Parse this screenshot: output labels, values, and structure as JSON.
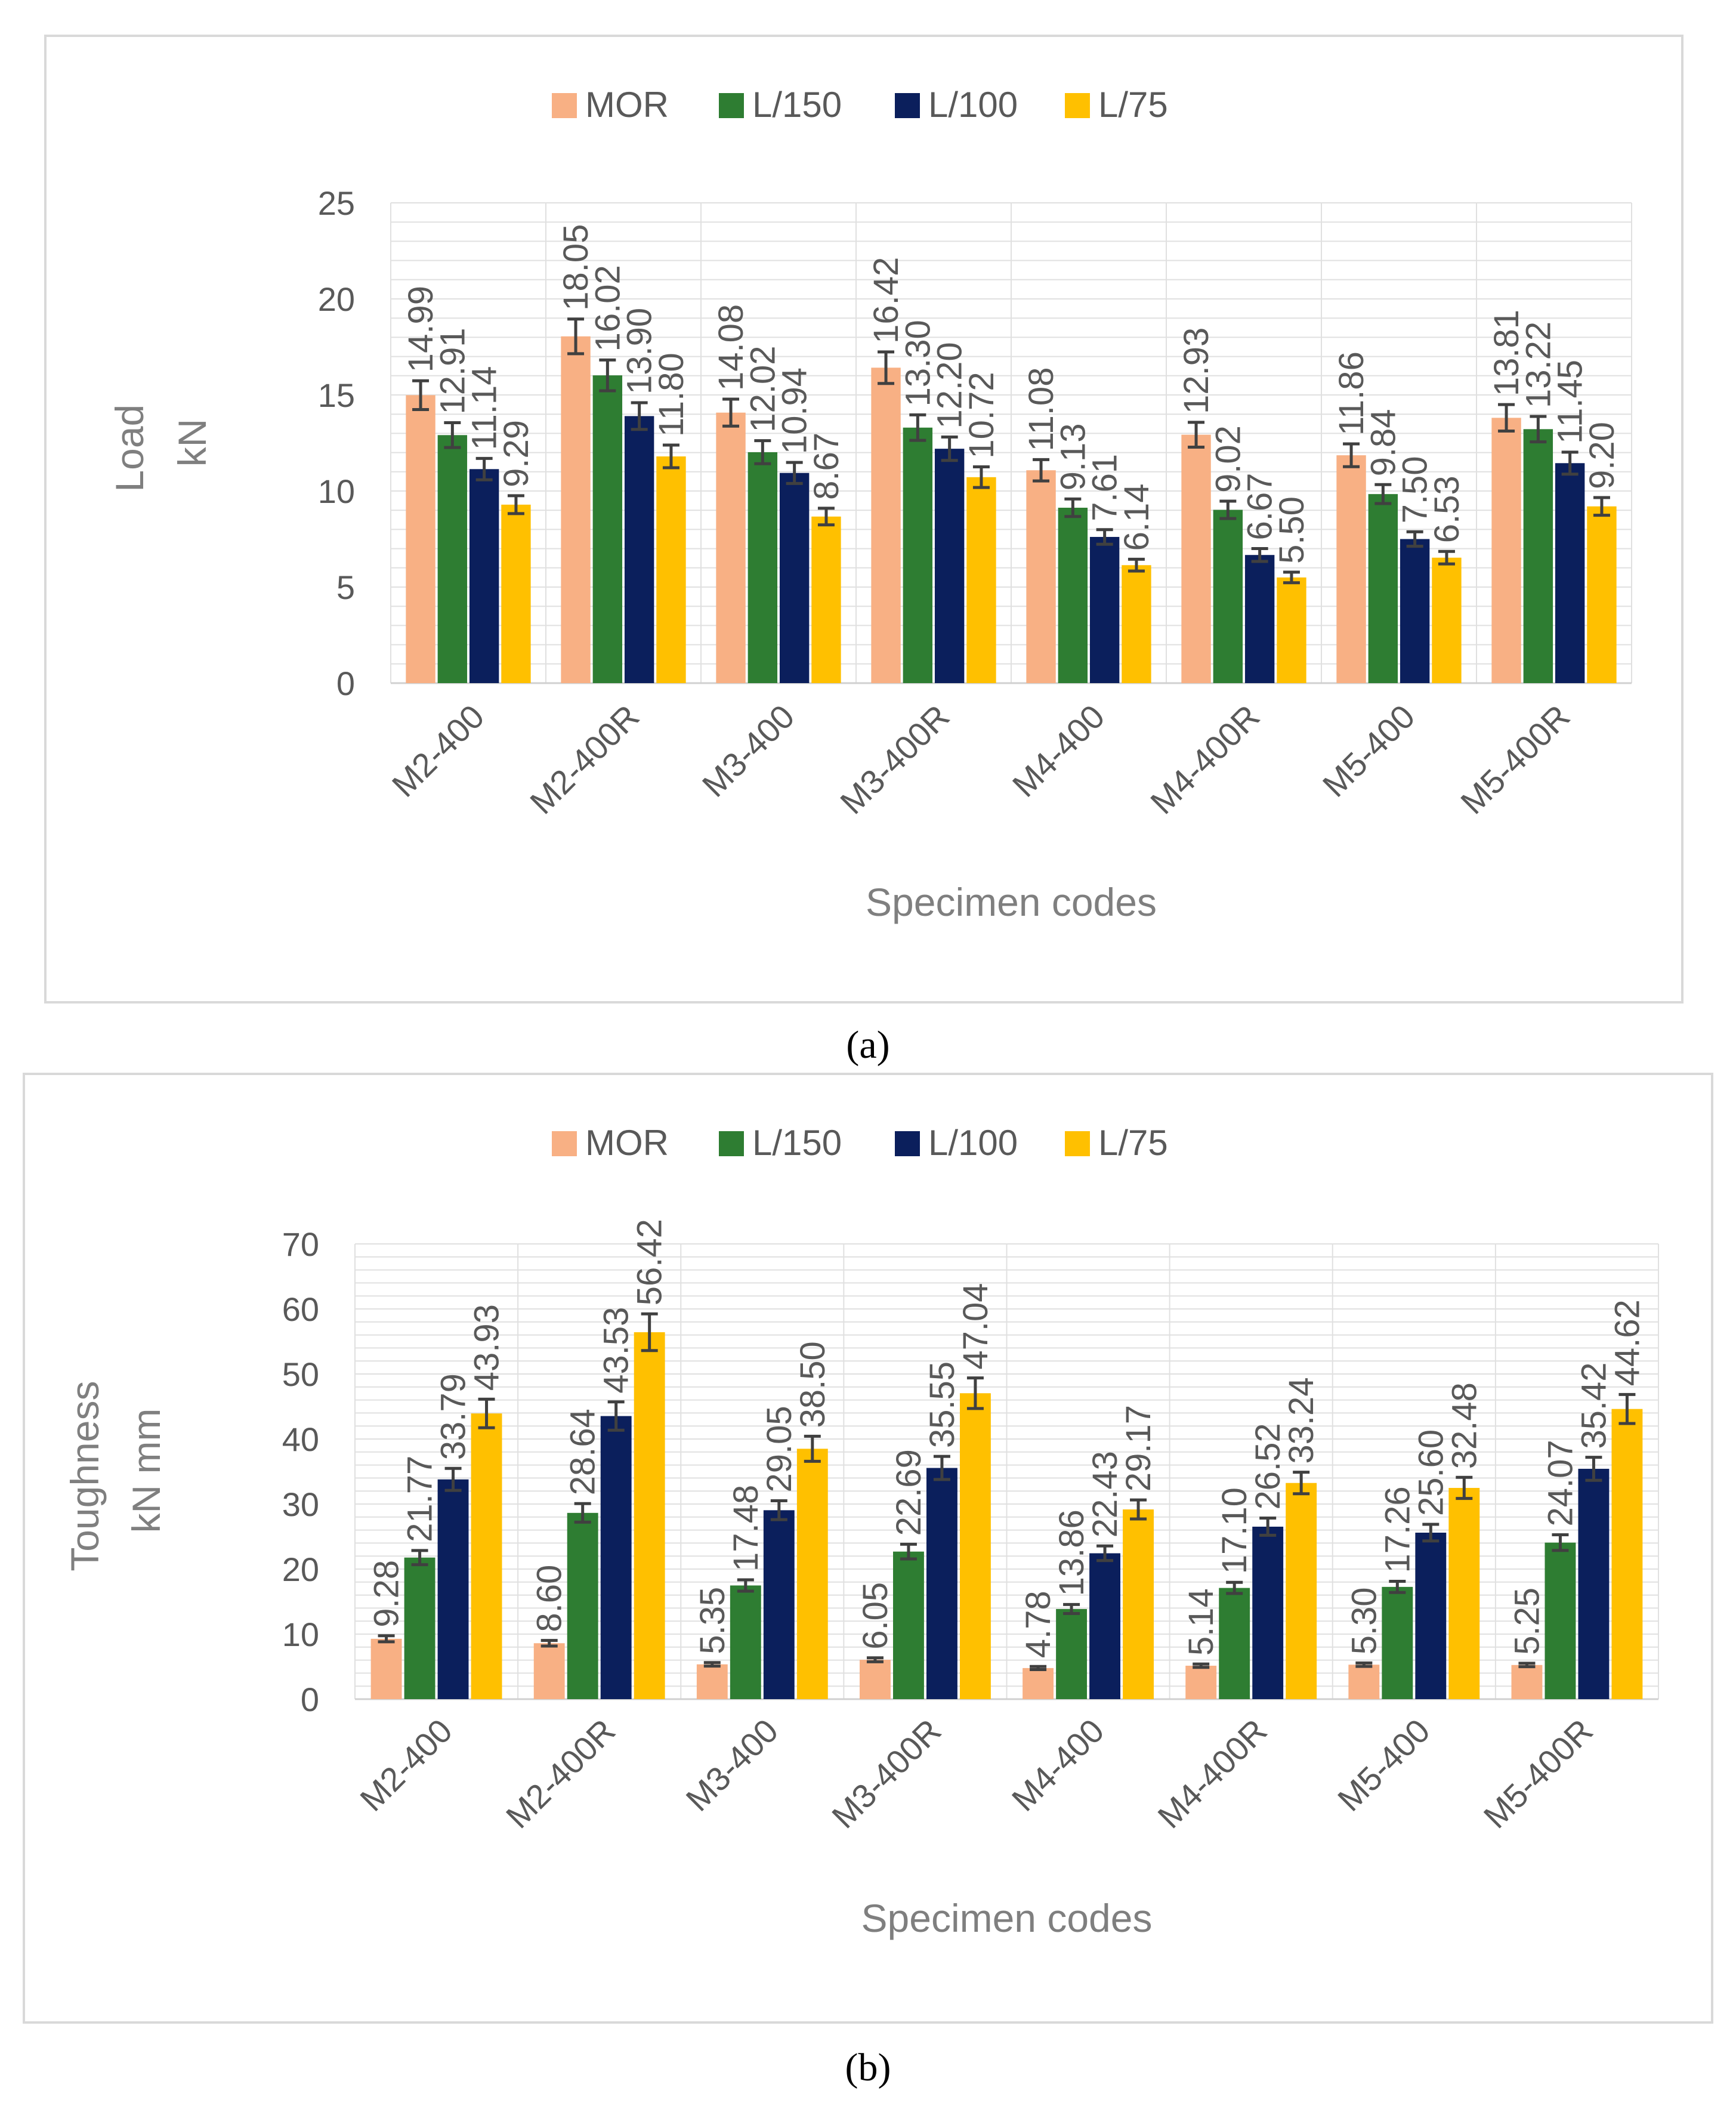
{
  "chart_data": [
    {
      "type": "bar",
      "panel": "(a)",
      "categories": [
        "M2-400",
        "M2-400R",
        "M3-400",
        "M3-400R",
        "M4-400",
        "M4-400R",
        "M5-400",
        "M5-400R"
      ],
      "series": [
        {
          "name": "MOR",
          "color": "#F8B084",
          "values": [
            14.99,
            18.05,
            14.08,
            16.42,
            11.08,
            12.93,
            11.86,
            13.81
          ]
        },
        {
          "name": "L/150",
          "color": "#2E7D32",
          "values": [
            12.91,
            16.02,
            12.02,
            13.3,
            9.13,
            9.02,
            9.84,
            13.22
          ]
        },
        {
          "name": "L/100",
          "color": "#0B1F5C",
          "values": [
            11.14,
            13.9,
            10.94,
            12.2,
            7.61,
            6.67,
            7.5,
            11.45
          ]
        },
        {
          "name": "L/75",
          "color": "#FFC000",
          "values": [
            9.29,
            11.8,
            8.67,
            10.72,
            6.14,
            5.5,
            6.53,
            9.2
          ]
        }
      ],
      "labels": [
        [
          "14.99",
          "18.05",
          "14.08",
          "16.42",
          "11.08",
          "12.93",
          "11.86",
          "13.81"
        ],
        [
          "12.91",
          "16.02",
          "12.02",
          "13.30",
          "9.13",
          "9.02",
          "9.84",
          "13.22"
        ],
        [
          "11.14",
          "13.90",
          "10.94",
          "12.20",
          "7.61",
          "6.67",
          "7.50",
          "11.45"
        ],
        [
          "9.29",
          "11.80",
          "8.67",
          "10.72",
          "6.14",
          "5.50",
          "6.53",
          "9.20"
        ]
      ],
      "error": 5,
      "xlabel": "Specimen codes",
      "ylabel_lines": [
        "Load",
        "kN"
      ],
      "ylim": [
        0,
        25
      ],
      "yticks": [
        0,
        5,
        10,
        15,
        20,
        25
      ],
      "grid": true,
      "legend": "top"
    },
    {
      "type": "bar",
      "panel": "(b)",
      "categories": [
        "M2-400",
        "M2-400R",
        "M3-400",
        "M3-400R",
        "M4-400",
        "M4-400R",
        "M5-400",
        "M5-400R"
      ],
      "series": [
        {
          "name": "MOR",
          "color": "#F8B084",
          "values": [
            9.28,
            8.6,
            5.35,
            6.05,
            4.78,
            5.14,
            5.3,
            5.25
          ]
        },
        {
          "name": "L/150",
          "color": "#2E7D32",
          "values": [
            21.77,
            28.64,
            17.48,
            22.69,
            13.86,
            17.1,
            17.26,
            24.07
          ]
        },
        {
          "name": "L/100",
          "color": "#0B1F5C",
          "values": [
            33.79,
            43.53,
            29.05,
            35.55,
            22.43,
            26.52,
            25.6,
            35.42
          ]
        },
        {
          "name": "L/75",
          "color": "#FFC000",
          "values": [
            43.93,
            56.42,
            38.5,
            47.04,
            29.17,
            33.24,
            32.48,
            44.62
          ]
        }
      ],
      "labels": [
        [
          "9.28",
          "8.60",
          "5.35",
          "6.05",
          "4.78",
          "5.14",
          "5.30",
          "5.25"
        ],
        [
          "21.77",
          "28.64",
          "17.48",
          "22.69",
          "13.86",
          "17.10",
          "17.26",
          "24.07"
        ],
        [
          "33.79",
          "43.53",
          "29.05",
          "35.55",
          "22.43",
          "26.52",
          "25.60",
          "35.42"
        ],
        [
          "43.93",
          "56.42",
          "38.50",
          "47.04",
          "29.17",
          "33.24",
          "32.48",
          "44.62"
        ]
      ],
      "error": 5,
      "xlabel": "Specimen codes",
      "ylabel_lines": [
        "Toughness",
        "kN mm"
      ],
      "ylim": [
        0,
        70
      ],
      "yticks": [
        0,
        10,
        20,
        30,
        40,
        50,
        60,
        70
      ],
      "grid": true,
      "legend": "top"
    }
  ]
}
